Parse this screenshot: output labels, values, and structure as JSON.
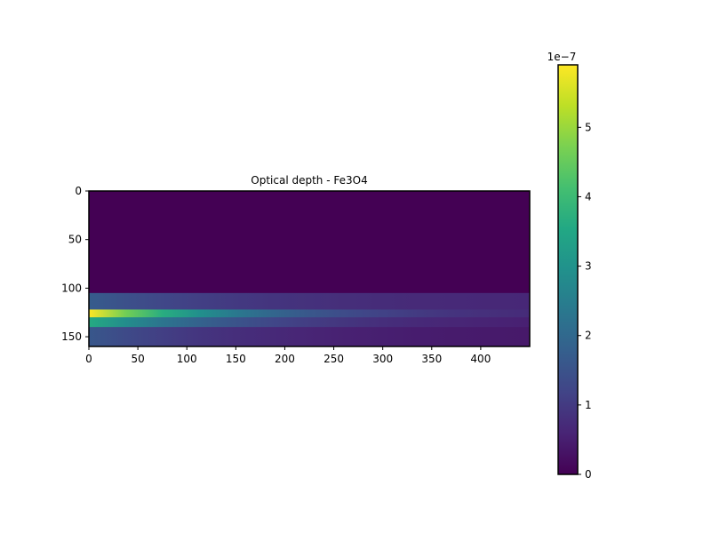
{
  "chart_data": {
    "type": "heatmap",
    "title": "Optical depth - Fe3O4",
    "xlabel": "",
    "ylabel": "",
    "x_range": [
      0,
      450
    ],
    "y_range": [
      0,
      160
    ],
    "y_inverted": true,
    "x_ticks": [
      0,
      50,
      100,
      150,
      200,
      250,
      300,
      350,
      400
    ],
    "y_ticks": [
      0,
      50,
      100,
      150
    ],
    "colorbar": {
      "colormap": "viridis",
      "range": [
        0,
        5.9
      ],
      "ticks": [
        0,
        1,
        2,
        3,
        4,
        5
      ],
      "scale_label": "1e−7"
    },
    "bands": [
      {
        "y_start": 0,
        "y_end": 105,
        "value_at_x0": 0.0,
        "value_at_xmax": 0.0
      },
      {
        "y_start": 105,
        "y_end": 122,
        "value_at_x0": 1.7,
        "value_at_xmax": 0.6
      },
      {
        "y_start": 122,
        "y_end": 130,
        "value_at_x0": 5.9,
        "value_at_xmax": 0.5
      },
      {
        "y_start": 130,
        "y_end": 140,
        "value_at_x0": 3.6,
        "value_at_xmax": 0.4
      },
      {
        "y_start": 140,
        "y_end": 160,
        "value_at_x0": 1.6,
        "value_at_xmax": 0.35
      }
    ],
    "grid": false
  }
}
